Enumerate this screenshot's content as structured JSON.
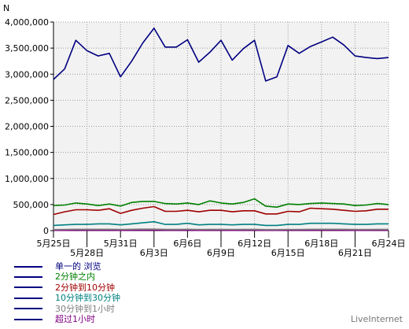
{
  "chart_data": {
    "type": "line",
    "ylabel": "N",
    "ylim": [
      0,
      4000000
    ],
    "y_ticks": [
      0,
      500000,
      1000000,
      1500000,
      2000000,
      2500000,
      3000000,
      3500000,
      4000000
    ],
    "y_tick_labels": [
      "0",
      "500,000",
      "1,000,000",
      "1,500,000",
      "2,000,000",
      "2,500,000",
      "3,000,000",
      "3,500,000",
      "4,000,000"
    ],
    "x_labels_upper": [
      {
        "index": 0,
        "label": "5月25日"
      },
      {
        "index": 6,
        "label": "5月31日"
      },
      {
        "index": 12,
        "label": "6月6日"
      },
      {
        "index": 18,
        "label": "6月12日"
      },
      {
        "index": 24,
        "label": "6月18日"
      },
      {
        "index": 30,
        "label": "6月24日"
      }
    ],
    "x_labels_lower": [
      {
        "index": 3,
        "label": "5月28日"
      },
      {
        "index": 9,
        "label": "6月3日"
      },
      {
        "index": 15,
        "label": "6月9日"
      },
      {
        "index": 21,
        "label": "6月15日"
      },
      {
        "index": 27,
        "label": "6月21日"
      }
    ],
    "grid": true,
    "legend_position": "bottom-left",
    "series": [
      {
        "name": "单一的 浏览",
        "color": "#000080",
        "values": [
          2900000,
          3100000,
          3650000,
          3450000,
          3350000,
          3400000,
          2950000,
          3250000,
          3600000,
          3880000,
          3520000,
          3520000,
          3660000,
          3230000,
          3420000,
          3650000,
          3270000,
          3490000,
          3650000,
          2870000,
          2950000,
          3550000,
          3400000,
          3530000,
          3620000,
          3710000,
          3560000,
          3350000,
          3320000,
          3300000,
          3320000
        ]
      },
      {
        "name": "2分钟之内",
        "color": "#008000",
        "values": [
          480000,
          490000,
          530000,
          510000,
          480000,
          510000,
          470000,
          540000,
          560000,
          560000,
          520000,
          510000,
          530000,
          500000,
          570000,
          530000,
          510000,
          540000,
          610000,
          470000,
          450000,
          510000,
          500000,
          520000,
          530000,
          520000,
          510000,
          480000,
          490000,
          520000,
          500000
        ]
      },
      {
        "name": "2分钟到10分钟",
        "color": "#a00000",
        "values": [
          310000,
          360000,
          400000,
          400000,
          390000,
          420000,
          330000,
          390000,
          430000,
          460000,
          370000,
          370000,
          390000,
          360000,
          390000,
          390000,
          360000,
          380000,
          380000,
          320000,
          320000,
          370000,
          360000,
          430000,
          420000,
          410000,
          390000,
          370000,
          380000,
          410000,
          410000
        ]
      },
      {
        "name": "10分钟到30分钟",
        "color": "#008080",
        "values": [
          100000,
          110000,
          120000,
          120000,
          130000,
          130000,
          110000,
          130000,
          150000,
          170000,
          120000,
          120000,
          140000,
          110000,
          120000,
          120000,
          110000,
          120000,
          120000,
          100000,
          100000,
          120000,
          120000,
          140000,
          140000,
          140000,
          130000,
          120000,
          120000,
          130000,
          130000
        ]
      },
      {
        "name": "30分钟到1小时",
        "color": "#808080",
        "values": [
          20000,
          22000,
          25000,
          25000,
          25000,
          26000,
          22000,
          25000,
          28000,
          30000,
          24000,
          24000,
          26000,
          23000,
          24000,
          24000,
          22000,
          24000,
          24000,
          20000,
          20000,
          23000,
          23000,
          26000,
          26000,
          26000,
          25000,
          23000,
          23000,
          24000,
          24000
        ]
      },
      {
        "name": "超过1小时",
        "color": "#800080",
        "values": [
          5000,
          5000,
          6000,
          6000,
          6000,
          6000,
          5000,
          6000,
          6000,
          7000,
          6000,
          6000,
          6000,
          5000,
          6000,
          6000,
          5000,
          6000,
          6000,
          5000,
          5000,
          6000,
          6000,
          6000,
          6000,
          6000,
          6000,
          5000,
          5000,
          6000,
          6000
        ]
      }
    ]
  },
  "brand": "LiveInternet"
}
